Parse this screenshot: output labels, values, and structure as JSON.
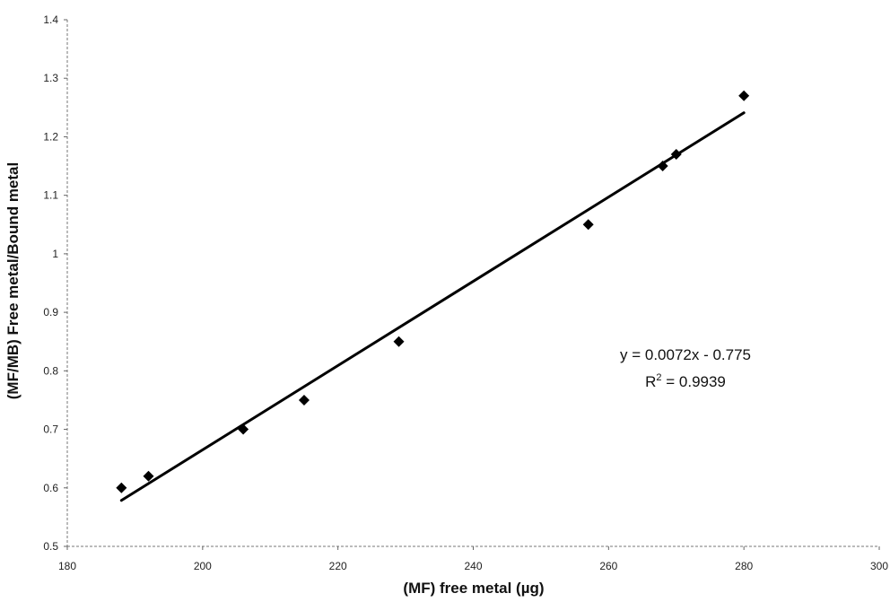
{
  "chart_data": {
    "type": "scatter",
    "title": "",
    "xlabel": "(MF) free metal (µg)",
    "ylabel": "(MF/MB) Free metal/Bound metal",
    "xlim": [
      180,
      300
    ],
    "ylim": [
      0.5,
      1.4
    ],
    "xticks": [
      "180",
      "200",
      "220",
      "240",
      "260",
      "280",
      "300"
    ],
    "yticks": [
      "0.5",
      "0.6",
      "0.7",
      "0.8",
      "0.9",
      "1",
      "1.1",
      "1.2",
      "1.3",
      "1.4"
    ],
    "grid": false,
    "legend": "none",
    "marker": "diamond",
    "color": "#000000",
    "series": [
      {
        "x": [
          188,
          192,
          206,
          215,
          229,
          257,
          268,
          270,
          280
        ],
        "y": [
          0.6,
          0.62,
          0.7,
          0.75,
          0.85,
          1.05,
          1.15,
          1.17,
          1.27
        ]
      }
    ],
    "trendline": {
      "type": "linear",
      "slope": 0.0072,
      "intercept": -0.775,
      "x_range": [
        188,
        280
      ],
      "equation": "y = 0.0072x - 0.775",
      "r2_prefix": "R",
      "r2_sup": "2",
      "r2_value": " = 0.9939"
    }
  }
}
